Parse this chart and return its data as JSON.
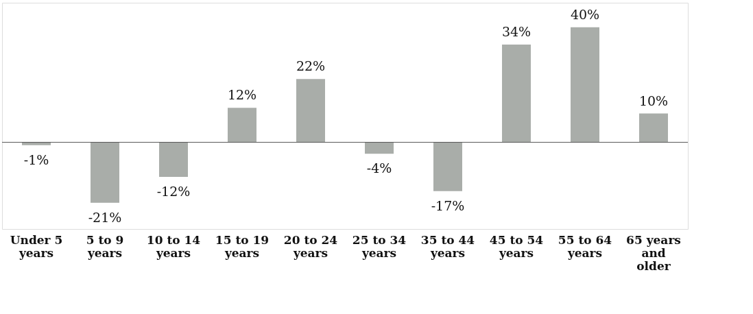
{
  "chart_data": {
    "type": "bar",
    "categories": [
      "Under 5\nyears",
      "5 to 9\nyears",
      "10 to 14\nyears",
      "15 to 19\nyears",
      "20 to 24\nyears",
      "25 to 34\nyears",
      "35 to 44\nyears",
      "45 to 54\nyears",
      "55 to 64\nyears",
      "65 years\nand\nolder"
    ],
    "values": [
      -1,
      -21,
      -12,
      12,
      22,
      -4,
      -17,
      34,
      40,
      10
    ],
    "value_labels": [
      "-1%",
      "-21%",
      "-12%",
      "12%",
      "22%",
      "-4%",
      "-17%",
      "34%",
      "40%",
      "10%"
    ],
    "color": "#a9ada9"
  }
}
